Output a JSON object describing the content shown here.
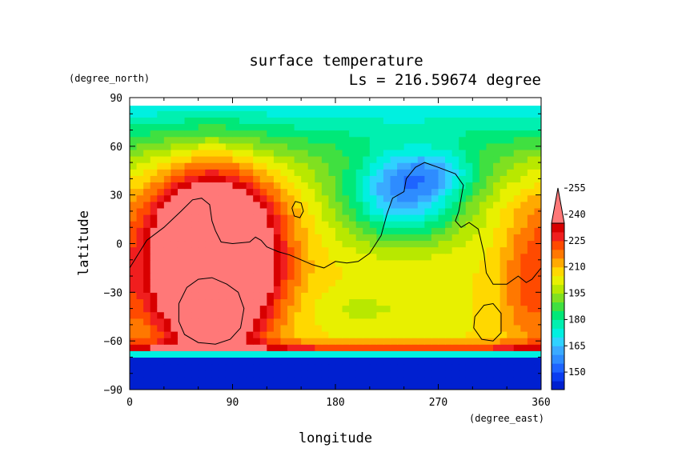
{
  "chart_data": {
    "type": "heatmap",
    "title": "surface temperature",
    "subtitle": "Ls = 216.59674 degree",
    "xlabel": "longitude",
    "ylabel": "latitude",
    "x_units": "(degree_east)",
    "y_units": "(degree_north)",
    "xlim": [
      0,
      360
    ],
    "ylim": [
      -90,
      90
    ],
    "x_ticks": [
      "0",
      "90",
      "180",
      "270",
      "360"
    ],
    "y_ticks": [
      "90",
      "60",
      "30",
      "0",
      "−30",
      "−60",
      "−90"
    ],
    "colorbar": {
      "labels": [
        "150",
        "165",
        "180",
        "195",
        "210",
        "225",
        "240",
        "255"
      ],
      "min": 140,
      "max": 260,
      "step": 5,
      "extend": "max",
      "colors": [
        "#0020d0",
        "#0a3cf0",
        "#1e64ff",
        "#2e8cff",
        "#3aaaff",
        "#2fd2ff",
        "#00f0e0",
        "#00f0b0",
        "#00e878",
        "#40e040",
        "#80e020",
        "#b8e800",
        "#e8f000",
        "#ffd800",
        "#ffaa00",
        "#ff7800",
        "#ff4a00",
        "#f01e1e",
        "#d80000",
        "#ff7878"
      ]
    },
    "grid": false,
    "legend": "right"
  }
}
